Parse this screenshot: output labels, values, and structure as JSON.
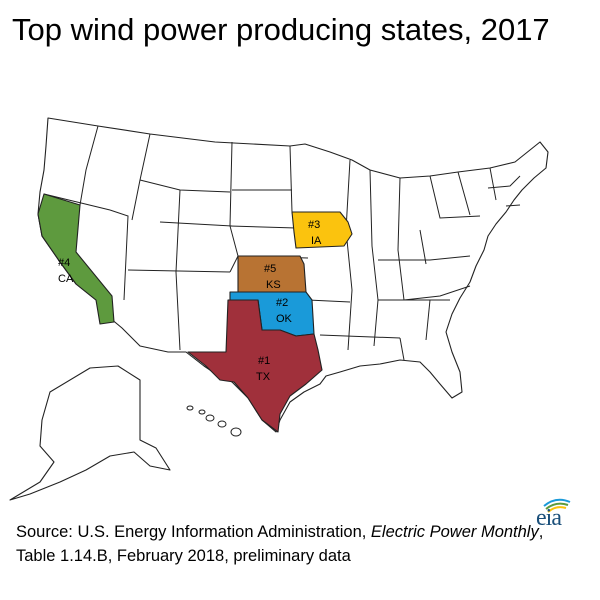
{
  "title": "Top wind power producing states, 2017",
  "map": {
    "ranked_states": [
      {
        "rank_label": "#1",
        "abbr": "TX",
        "state": "Texas",
        "color": "#a0303b"
      },
      {
        "rank_label": "#2",
        "abbr": "OK",
        "state": "Oklahoma",
        "color": "#1a9ad9"
      },
      {
        "rank_label": "#3",
        "abbr": "IA",
        "state": "Iowa",
        "color": "#fbc30e"
      },
      {
        "rank_label": "#4",
        "abbr": "CA",
        "state": "California",
        "color": "#5e9a3e"
      },
      {
        "rank_label": "#5",
        "abbr": "KS",
        "state": "Kansas",
        "color": "#b87333"
      }
    ],
    "base_state_color": "#ffffff",
    "border_color": "#222222"
  },
  "source": {
    "prefix": "Source: U.S. Energy Information Administration, ",
    "publication": "Electric Power Monthly",
    "suffix": ", Table 1.14.B, February 2018, preliminary data"
  },
  "logo": {
    "text": "eia",
    "icon": "eia-logo-icon"
  }
}
